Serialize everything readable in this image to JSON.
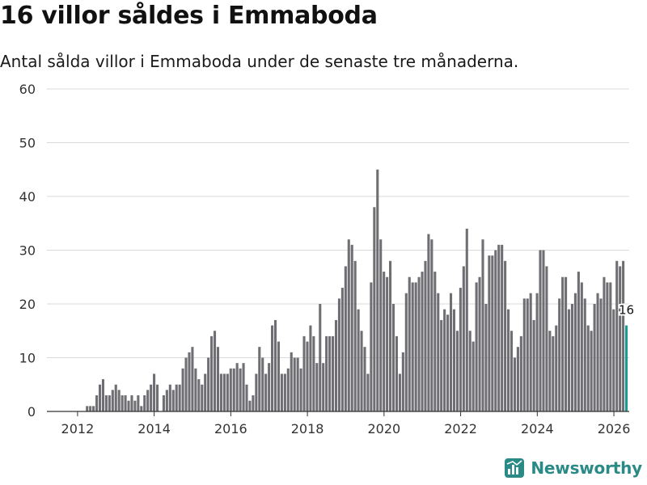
{
  "chart_data": {
    "type": "bar",
    "title": "16 villor såldes i Emmaboda",
    "subtitle": "Antal sålda villor i Emmaboda under de senaste tre månaderna.",
    "ylim": [
      0,
      60
    ],
    "y_ticks": [
      0,
      10,
      20,
      30,
      40,
      50,
      60
    ],
    "x_ticks": [
      2012,
      2014,
      2016,
      2018,
      2020,
      2022,
      2024,
      2026
    ],
    "x_range": [
      2011.2,
      2026.4
    ],
    "series": [
      {
        "name": "Sålda villor",
        "start": 2012.083,
        "step": 0.0833,
        "values": [
          0,
          0,
          1,
          1,
          1,
          3,
          5,
          6,
          3,
          3,
          4,
          5,
          4,
          3,
          3,
          2,
          3,
          2,
          3,
          1,
          3,
          4,
          5,
          7,
          5,
          0,
          3,
          4,
          5,
          4,
          5,
          5,
          8,
          10,
          11,
          12,
          8,
          6,
          5,
          7,
          10,
          14,
          15,
          12,
          7,
          7,
          7,
          8,
          8,
          9,
          8,
          9,
          5,
          2,
          3,
          7,
          12,
          10,
          7,
          9,
          16,
          17,
          13,
          7,
          7,
          8,
          11,
          10,
          10,
          8,
          14,
          13,
          16,
          14,
          9,
          20,
          9,
          14,
          14,
          14,
          17,
          21,
          23,
          27,
          32,
          31,
          28,
          19,
          15,
          12,
          7,
          24,
          38,
          45,
          32,
          26,
          25,
          28,
          20,
          14,
          7,
          11,
          22,
          25,
          24,
          24,
          25,
          26,
          28,
          33,
          32,
          26,
          22,
          17,
          19,
          18,
          22,
          19,
          15,
          23,
          27,
          34,
          15,
          13,
          24,
          25,
          32,
          20,
          29,
          29,
          30,
          31,
          31,
          28,
          19,
          15,
          10,
          12,
          14,
          21,
          21,
          22,
          17,
          22,
          30,
          30,
          27,
          15,
          14,
          16,
          21,
          25,
          25,
          19,
          20,
          22,
          26,
          24,
          21,
          16,
          15,
          20,
          22,
          21,
          25,
          24,
          24,
          19,
          28,
          27,
          28,
          16
        ],
        "color": "#6e6e73",
        "highlight_color": "#1a9b91"
      }
    ],
    "annotation": {
      "label": "16",
      "value": 16
    }
  },
  "brand": {
    "name": "Newsworthy",
    "icon": "newsworthy-logo-icon",
    "color": "#2a8a86"
  }
}
